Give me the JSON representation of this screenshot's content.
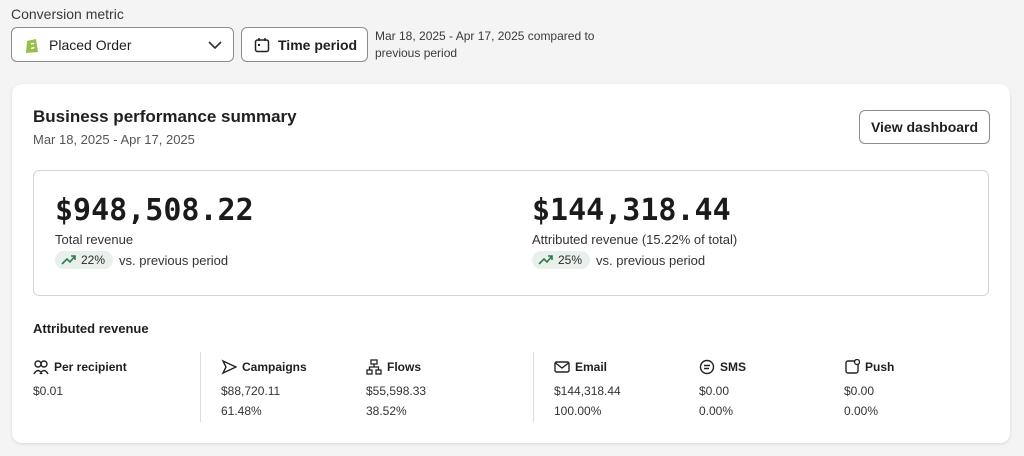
{
  "filters": {
    "label": "Conversion metric",
    "metric": "Placed Order",
    "time_button": "Time period",
    "range_note": "Mar 18, 2025 - Apr 17, 2025 compared to previous period"
  },
  "summary": {
    "title": "Business performance summary",
    "date_range": "Mar 18, 2025 - Apr 17, 2025",
    "button": "View dashboard",
    "totals": [
      {
        "value": "$948,508.22",
        "label": "Total revenue",
        "change": "22%",
        "comparison": "vs. previous period"
      },
      {
        "value": "$144,318.44",
        "label": "Attributed revenue (15.22% of total)",
        "change": "25%",
        "comparison": "vs. previous period"
      }
    ],
    "attributed": {
      "title": "Attributed revenue",
      "metrics": [
        {
          "label": "Per recipient",
          "value": "$0.01"
        },
        {
          "label": "Campaigns",
          "value": "$88,720.11",
          "share": "61.48%"
        },
        {
          "label": "Flows",
          "value": "$55,598.33",
          "share": "38.52%"
        },
        {
          "label": "Email",
          "value": "$144,318.44",
          "share": "100.00%"
        },
        {
          "label": "SMS",
          "value": "$0.00",
          "share": "0.00%"
        },
        {
          "label": "Push",
          "value": "$0.00",
          "share": "0.00%"
        }
      ]
    }
  }
}
